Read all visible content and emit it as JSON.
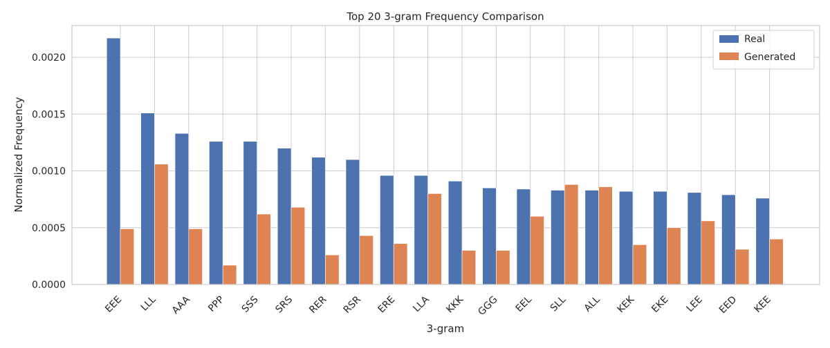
{
  "chart_data": {
    "type": "bar",
    "title": "Top 20 3-gram Frequency Comparison",
    "xlabel": "3-gram",
    "ylabel": "Normalized Frequency",
    "categories": [
      "EEE",
      "LLL",
      "AAA",
      "PPP",
      "SSS",
      "SRS",
      "RER",
      "RSR",
      "ERE",
      "LLA",
      "KKK",
      "GGG",
      "EEL",
      "SLL",
      "ALL",
      "KEK",
      "EKE",
      "LEE",
      "EED",
      "KEE"
    ],
    "series": [
      {
        "name": "Real",
        "color": "#4c72b0",
        "values": [
          0.00217,
          0.00151,
          0.00133,
          0.00126,
          0.00126,
          0.0012,
          0.00112,
          0.0011,
          0.00096,
          0.00096,
          0.00091,
          0.00085,
          0.00084,
          0.00083,
          0.00083,
          0.00082,
          0.00082,
          0.00081,
          0.00079,
          0.00076
        ]
      },
      {
        "name": "Generated",
        "color": "#dd8452",
        "values": [
          0.00049,
          0.00106,
          0.00049,
          0.00017,
          0.00062,
          0.00068,
          0.00026,
          0.00043,
          0.00036,
          0.0008,
          0.0003,
          0.0003,
          0.0006,
          0.00088,
          0.00086,
          0.00035,
          0.0005,
          0.00056,
          0.00031,
          0.0004
        ]
      }
    ],
    "ylim": [
      0,
      0.00228
    ],
    "yticks": [
      "0.0000",
      "0.0005",
      "0.0010",
      "0.0015",
      "0.0020"
    ],
    "ytick_values": [
      0,
      0.0005,
      0.001,
      0.0015,
      0.002
    ],
    "grid": true,
    "legend_position": "top-right",
    "grid_color": "#cccccc",
    "axes_color": "#cccccc"
  }
}
